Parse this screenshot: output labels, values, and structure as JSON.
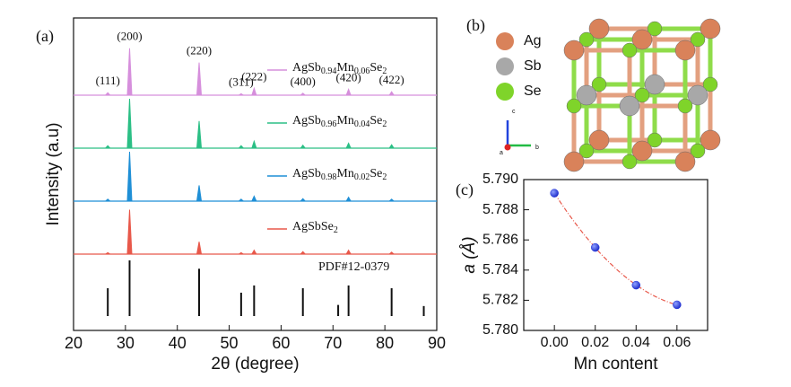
{
  "chart_data": [
    {
      "type": "xrd",
      "panel_label": "(a)",
      "xlabel": "2θ (degree)",
      "ylabel": "Intensity (a.u)",
      "xlim": [
        20,
        90
      ],
      "xticks": [
        20,
        30,
        40,
        50,
        60,
        70,
        80,
        90
      ],
      "x": [
        26.6,
        30.8,
        44.2,
        52.3,
        54.8,
        64.2,
        73.0,
        81.3
      ],
      "peak_labels": [
        "(111)",
        "(200)",
        "(220)",
        "(311)",
        "(222)",
        "(400)",
        "(420)",
        "(422)"
      ],
      "series": [
        {
          "name": "AgSbSe2",
          "color": "#e8584a",
          "values": [
            3,
            90,
            25,
            3,
            8,
            5,
            8,
            4
          ]
        },
        {
          "name": "AgSb0.98Mn0.02Se2",
          "color": "#1f8fd6",
          "values": [
            4,
            100,
            32,
            4,
            10,
            5,
            8,
            4
          ]
        },
        {
          "name": "AgSb0.96Mn0.04Se2",
          "color": "#2bbf85",
          "values": [
            5,
            100,
            55,
            5,
            14,
            6,
            10,
            7
          ]
        },
        {
          "name": "AgSb0.94Mn0.06Se2",
          "color": "#d68fdc",
          "values": [
            5,
            95,
            66,
            3,
            14,
            4,
            12,
            7
          ]
        }
      ],
      "reference": {
        "name": "PDF#12-0379",
        "color": "#111111",
        "x": [
          26.6,
          30.8,
          44.2,
          52.3,
          54.8,
          64.2,
          71.0,
          73.0,
          81.3,
          87.5
        ],
        "values": [
          50,
          100,
          85,
          42,
          55,
          50,
          20,
          55,
          50,
          18
        ]
      }
    },
    {
      "type": "scatter",
      "panel_label": "(c)",
      "xlabel": "Mn content",
      "ylabel": "a (Å)",
      "x": [
        0.0,
        0.02,
        0.04,
        0.06
      ],
      "values": [
        5.7891,
        5.7855,
        5.783,
        5.7817
      ],
      "color": "#2233dd",
      "fit_color": "#e8584a",
      "xlim": [
        -0.015,
        0.075
      ],
      "xticks": [
        {
          "value": 0,
          "label": "0.00"
        },
        {
          "value": 0.02,
          "label": "0.02"
        },
        {
          "value": 0.04,
          "label": "0.04"
        },
        {
          "value": 0.06,
          "label": "0.06"
        }
      ],
      "ylim": [
        5.78,
        5.79
      ],
      "yticks": [
        {
          "value": 5.78,
          "label": "5.780"
        },
        {
          "value": 5.782,
          "label": "5.782"
        },
        {
          "value": 5.784,
          "label": "5.784"
        },
        {
          "value": 5.786,
          "label": "5.786"
        },
        {
          "value": 5.788,
          "label": "5.788"
        },
        {
          "value": 5.79,
          "label": "5.790"
        }
      ]
    }
  ],
  "diagram": {
    "panel_label": "(b)",
    "legend": [
      "Ag",
      "Sb",
      "Se"
    ],
    "axes": [
      "c",
      "b",
      "a"
    ]
  }
}
